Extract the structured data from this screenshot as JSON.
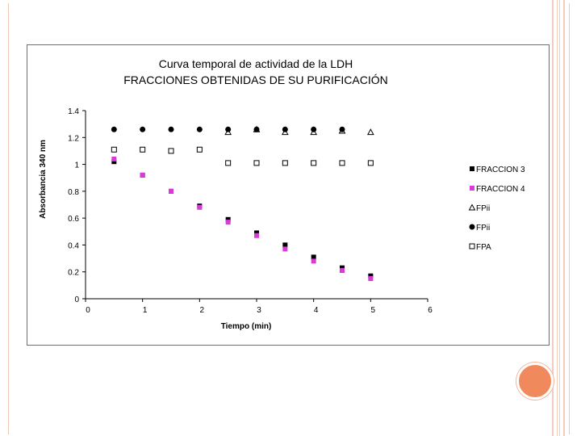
{
  "chart_data": {
    "type": "scatter",
    "title_lines": [
      "Curva temporal de actividad de la LDH",
      "FRACCIONES OBTENIDAS DE SU PURIFICACIÓN"
    ],
    "xlabel": "Tiempo (min)",
    "ylabel": "Absorbancia 340 nm",
    "xlim": [
      0,
      6
    ],
    "ylim": [
      0,
      1.4
    ],
    "x_ticks": [
      "0",
      "1",
      "2",
      "3",
      "4",
      "5",
      "6"
    ],
    "y_ticks": [
      "0",
      "0.2",
      "0.4",
      "0.6",
      "0.8",
      "1",
      "1.2",
      "1.4"
    ],
    "legend_position": "right",
    "series": [
      {
        "name": "FRACCION 3",
        "marker": "square-filled",
        "color": "#000000",
        "x": [
          0.5,
          1,
          1.5,
          2,
          2.5,
          3,
          3.5,
          4,
          4.5,
          5
        ],
        "y": [
          1.02,
          0.92,
          0.8,
          0.69,
          0.59,
          0.49,
          0.4,
          0.31,
          0.23,
          0.17
        ]
      },
      {
        "name": "FRACCION 4",
        "marker": "square-filled",
        "color": "#d93ad9",
        "x": [
          0.5,
          1,
          1.5,
          2,
          2.5,
          3,
          3.5,
          4,
          4.5,
          5
        ],
        "y": [
          1.04,
          0.92,
          0.8,
          0.68,
          0.57,
          0.47,
          0.37,
          0.28,
          0.21,
          0.15
        ]
      },
      {
        "name": "FPii",
        "marker": "triangle-open",
        "color": "#000000",
        "x": [
          2.5,
          3,
          3.5,
          4,
          4.5,
          5
        ],
        "y": [
          1.24,
          1.26,
          1.24,
          1.24,
          1.25,
          1.24
        ]
      },
      {
        "name": "FPii",
        "marker": "circle-filled",
        "color": "#000000",
        "x": [
          0.5,
          1,
          1.5,
          2,
          2.5,
          3,
          3.5,
          4,
          4.5
        ],
        "y": [
          1.26,
          1.26,
          1.26,
          1.26,
          1.26,
          1.26,
          1.26,
          1.26,
          1.26
        ]
      },
      {
        "name": "FPA",
        "marker": "square-open",
        "color": "#000000",
        "x": [
          0.5,
          1,
          1.5,
          2,
          2.5,
          3,
          3.5,
          4,
          4.5,
          5
        ],
        "y": [
          1.11,
          1.11,
          1.1,
          1.11,
          1.01,
          1.01,
          1.01,
          1.01,
          1.01,
          1.01
        ]
      }
    ]
  },
  "colors": {
    "accent_circle": "#f08a5d",
    "slide_lines": "#f3cdbb"
  }
}
